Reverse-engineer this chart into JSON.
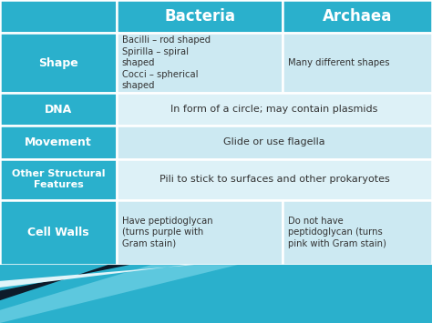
{
  "header_bg": "#2ab0cc",
  "header_text_color": "#ffffff",
  "row_label_bg": "#2ab0cc",
  "row_label_text_color": "#ffffff",
  "cell_bg_light": "#cce9f2",
  "cell_bg_lighter": "#ddf1f7",
  "border_color": "#ffffff",
  "top_bg": "#2ab0cc",
  "fig_bg": "#2ab0cc",
  "col_labels": [
    "Bacteria",
    "Archaea"
  ],
  "row_labels": [
    "Shape",
    "DNA",
    "Movement",
    "Other Structural\nFeatures",
    "Cell Walls"
  ],
  "bacteria_cells": [
    "Bacilli – rod shaped\nSpirilla – spiral\nshaped\nCocci – spherical\nshaped",
    "In form of a circle; may contain plasmids",
    "Glide or use flagella",
    "Pili to stick to surfaces and other prokaryotes",
    "Have peptidoglycan\n(turns purple with\nGram stain)"
  ],
  "archaea_cells": [
    "Many different shapes",
    "",
    "",
    "",
    "Do not have\npeptidoglycan (turns\npink with Gram stain)"
  ],
  "merged_rows": [
    1,
    2,
    3
  ],
  "cell_text_color": "#333333",
  "deco_color1": "#2ab0cc",
  "deco_color2": "#1a8aaa",
  "deco_color3": "#0d1b2a"
}
